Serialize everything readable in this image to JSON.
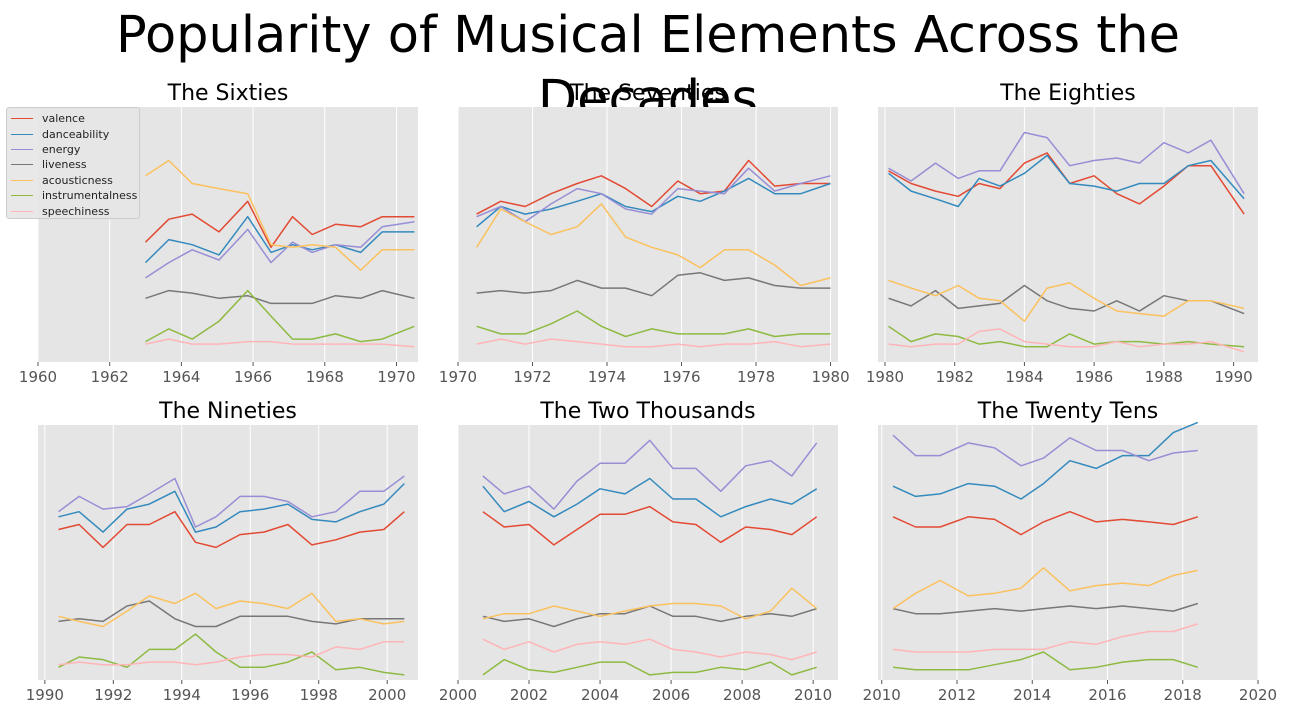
{
  "title": "Popularity of Musical Elements Across the Decades",
  "colors": {
    "valence": "#E24A33",
    "danceability": "#348ABD",
    "energy": "#988ED5",
    "liveness": "#777777",
    "acousticness": "#FBC15E",
    "instrumentalness": "#8EBA42",
    "speechiness": "#FFB5B8",
    "panel_background": "#E5E5E5",
    "grid": "#FFFFFF"
  },
  "legend": {
    "placement": "upper-left of first panel",
    "entries": [
      "valence",
      "danceability",
      "energy",
      "liveness",
      "acousticness",
      "instrumentalness",
      "speechiness"
    ]
  },
  "chart_data": [
    {
      "type": "line",
      "title": "The Sixties",
      "xlim": [
        1960,
        1970.6
      ],
      "ylim": [
        0,
        1
      ],
      "xticks": [
        1960,
        1962,
        1964,
        1966,
        1968,
        1970
      ],
      "grid": "vertical",
      "x": [
        1963,
        1963.65,
        1964.3,
        1965.05,
        1965.85,
        1966.5,
        1967.1,
        1967.65,
        1968.3,
        1969,
        1969.6,
        1970.5
      ],
      "series": [
        {
          "name": "valence",
          "values": [
            0.47,
            0.56,
            0.58,
            0.51,
            0.63,
            0.45,
            0.57,
            0.5,
            0.54,
            0.53,
            0.57,
            0.57
          ]
        },
        {
          "name": "danceability",
          "values": [
            0.39,
            0.48,
            0.46,
            0.42,
            0.57,
            0.43,
            0.46,
            0.44,
            0.46,
            0.43,
            0.51,
            0.51
          ]
        },
        {
          "name": "energy",
          "values": [
            0.33,
            0.39,
            0.44,
            0.4,
            0.52,
            0.39,
            0.47,
            0.43,
            0.46,
            0.45,
            0.53,
            0.55
          ]
        },
        {
          "name": "liveness",
          "values": [
            0.25,
            0.28,
            0.27,
            0.25,
            0.26,
            0.23,
            0.23,
            0.23,
            0.26,
            0.25,
            0.28,
            0.25
          ]
        },
        {
          "name": "acousticness",
          "values": [
            0.73,
            0.79,
            0.7,
            0.68,
            0.66,
            0.46,
            0.45,
            0.46,
            0.45,
            0.36,
            0.44,
            0.44
          ]
        },
        {
          "name": "instrumentalness",
          "values": [
            0.08,
            0.13,
            0.09,
            0.16,
            0.28,
            0.18,
            0.09,
            0.09,
            0.11,
            0.08,
            0.09,
            0.14
          ]
        },
        {
          "name": "speechiness",
          "values": [
            0.07,
            0.09,
            0.07,
            0.07,
            0.08,
            0.08,
            0.07,
            0.07,
            0.07,
            0.07,
            0.07,
            0.06
          ]
        }
      ]
    },
    {
      "type": "line",
      "title": "The Seventies",
      "xlim": [
        1970,
        1980.2
      ],
      "ylim": [
        0,
        1
      ],
      "xticks": [
        1970,
        1972,
        1974,
        1976,
        1978,
        1980
      ],
      "grid": "vertical",
      "x": [
        1970.5,
        1971.15,
        1971.8,
        1972.5,
        1973.2,
        1973.85,
        1974.5,
        1975.2,
        1975.9,
        1976.5,
        1977.15,
        1977.8,
        1978.5,
        1979.2,
        1980
      ],
      "series": [
        {
          "name": "valence",
          "values": [
            0.58,
            0.63,
            0.61,
            0.66,
            0.7,
            0.73,
            0.68,
            0.61,
            0.71,
            0.66,
            0.67,
            0.79,
            0.69,
            0.7,
            0.7
          ]
        },
        {
          "name": "danceability",
          "values": [
            0.53,
            0.61,
            0.58,
            0.6,
            0.63,
            0.66,
            0.61,
            0.59,
            0.65,
            0.63,
            0.67,
            0.72,
            0.66,
            0.66,
            0.7
          ]
        },
        {
          "name": "energy",
          "values": [
            0.57,
            0.61,
            0.55,
            0.62,
            0.68,
            0.66,
            0.6,
            0.58,
            0.68,
            0.67,
            0.66,
            0.76,
            0.67,
            0.7,
            0.73
          ]
        },
        {
          "name": "liveness",
          "values": [
            0.27,
            0.28,
            0.27,
            0.28,
            0.32,
            0.29,
            0.29,
            0.26,
            0.34,
            0.35,
            0.32,
            0.33,
            0.3,
            0.29,
            0.29
          ]
        },
        {
          "name": "acousticness",
          "values": [
            0.45,
            0.6,
            0.55,
            0.5,
            0.53,
            0.62,
            0.49,
            0.45,
            0.42,
            0.37,
            0.44,
            0.44,
            0.38,
            0.3,
            0.33
          ]
        },
        {
          "name": "instrumentalness",
          "values": [
            0.14,
            0.11,
            0.11,
            0.15,
            0.2,
            0.14,
            0.1,
            0.13,
            0.11,
            0.11,
            0.11,
            0.13,
            0.1,
            0.11,
            0.11
          ]
        },
        {
          "name": "speechiness",
          "values": [
            0.07,
            0.09,
            0.07,
            0.09,
            0.08,
            0.07,
            0.06,
            0.06,
            0.07,
            0.06,
            0.07,
            0.07,
            0.08,
            0.06,
            0.07
          ]
        }
      ]
    },
    {
      "type": "line",
      "title": "The Eighties",
      "xlim": [
        1979.8,
        1990.7
      ],
      "ylim": [
        0,
        1
      ],
      "xticks": [
        1980,
        1982,
        1984,
        1986,
        1988,
        1990
      ],
      "grid": "vertical",
      "x": [
        1980.1,
        1980.75,
        1981.45,
        1982.1,
        1982.7,
        1983.3,
        1984,
        1984.65,
        1985.3,
        1986,
        1986.65,
        1987.3,
        1988,
        1988.7,
        1989.35,
        1990.3
      ],
      "series": [
        {
          "name": "valence",
          "values": [
            0.75,
            0.7,
            0.67,
            0.65,
            0.7,
            0.68,
            0.78,
            0.82,
            0.7,
            0.73,
            0.66,
            0.62,
            0.69,
            0.77,
            0.77,
            0.58
          ]
        },
        {
          "name": "danceability",
          "values": [
            0.74,
            0.67,
            0.64,
            0.61,
            0.72,
            0.69,
            0.74,
            0.81,
            0.7,
            0.69,
            0.67,
            0.7,
            0.7,
            0.77,
            0.79,
            0.64
          ]
        },
        {
          "name": "energy",
          "values": [
            0.76,
            0.71,
            0.78,
            0.72,
            0.75,
            0.75,
            0.9,
            0.88,
            0.77,
            0.79,
            0.8,
            0.78,
            0.86,
            0.82,
            0.87,
            0.66
          ]
        },
        {
          "name": "liveness",
          "values": [
            0.25,
            0.22,
            0.28,
            0.21,
            0.22,
            0.23,
            0.3,
            0.24,
            0.21,
            0.2,
            0.24,
            0.2,
            0.26,
            0.24,
            0.24,
            0.19
          ]
        },
        {
          "name": "acousticness",
          "values": [
            0.32,
            0.29,
            0.26,
            0.3,
            0.25,
            0.24,
            0.16,
            0.29,
            0.31,
            0.25,
            0.2,
            0.19,
            0.18,
            0.24,
            0.24,
            0.21
          ]
        },
        {
          "name": "instrumentalness",
          "values": [
            0.14,
            0.08,
            0.11,
            0.1,
            0.07,
            0.08,
            0.06,
            0.06,
            0.11,
            0.07,
            0.08,
            0.08,
            0.07,
            0.08,
            0.07,
            0.06
          ]
        },
        {
          "name": "speechiness",
          "values": [
            0.07,
            0.06,
            0.07,
            0.07,
            0.12,
            0.13,
            0.08,
            0.07,
            0.06,
            0.06,
            0.08,
            0.06,
            0.07,
            0.07,
            0.08,
            0.04
          ]
        }
      ]
    },
    {
      "type": "line",
      "title": "The Nineties",
      "xlim": [
        1989.8,
        2000.9
      ],
      "ylim": [
        0,
        1
      ],
      "xticks": [
        1990,
        1992,
        1994,
        1996,
        1998,
        2000
      ],
      "grid": "vertical",
      "x": [
        1990.4,
        1991,
        1991.7,
        1992.4,
        1993.05,
        1993.8,
        1994.4,
        1995,
        1995.7,
        1996.4,
        1997.1,
        1997.8,
        1998.5,
        1999.2,
        1999.9,
        2000.5
      ],
      "series": [
        {
          "name": "valence",
          "values": [
            0.59,
            0.61,
            0.52,
            0.61,
            0.61,
            0.66,
            0.54,
            0.52,
            0.57,
            0.58,
            0.61,
            0.53,
            0.55,
            0.58,
            0.59,
            0.66
          ]
        },
        {
          "name": "danceability",
          "values": [
            0.64,
            0.66,
            0.58,
            0.67,
            0.69,
            0.74,
            0.58,
            0.6,
            0.66,
            0.67,
            0.69,
            0.63,
            0.62,
            0.66,
            0.69,
            0.77
          ]
        },
        {
          "name": "energy",
          "values": [
            0.66,
            0.72,
            0.67,
            0.68,
            0.73,
            0.79,
            0.6,
            0.64,
            0.72,
            0.72,
            0.7,
            0.64,
            0.66,
            0.74,
            0.74,
            0.8
          ]
        },
        {
          "name": "liveness",
          "values": [
            0.23,
            0.24,
            0.23,
            0.29,
            0.31,
            0.24,
            0.21,
            0.21,
            0.25,
            0.25,
            0.25,
            0.23,
            0.22,
            0.24,
            0.24,
            0.24
          ]
        },
        {
          "name": "acousticness",
          "values": [
            0.25,
            0.23,
            0.21,
            0.27,
            0.33,
            0.3,
            0.34,
            0.28,
            0.31,
            0.3,
            0.28,
            0.34,
            0.23,
            0.24,
            0.22,
            0.23
          ]
        },
        {
          "name": "instrumentalness",
          "values": [
            0.05,
            0.09,
            0.08,
            0.05,
            0.12,
            0.12,
            0.18,
            0.11,
            0.05,
            0.05,
            0.07,
            0.11,
            0.04,
            0.05,
            0.03,
            0.02
          ]
        },
        {
          "name": "speechiness",
          "values": [
            0.06,
            0.07,
            0.06,
            0.06,
            0.07,
            0.07,
            0.06,
            0.07,
            0.09,
            0.1,
            0.1,
            0.09,
            0.13,
            0.12,
            0.15,
            0.15
          ]
        }
      ]
    },
    {
      "type": "line",
      "title": "The Two Thousands",
      "xlim": [
        2000,
        2010.7
      ],
      "ylim": [
        0,
        1
      ],
      "xticks": [
        2000,
        2002,
        2004,
        2006,
        2008,
        2010
      ],
      "grid": "vertical",
      "x": [
        2000.7,
        2001.3,
        2002,
        2002.7,
        2003.35,
        2004,
        2004.7,
        2005.4,
        2006.05,
        2006.7,
        2007.4,
        2008.1,
        2008.8,
        2009.4,
        2010.1
      ],
      "series": [
        {
          "name": "valence",
          "values": [
            0.66,
            0.6,
            0.61,
            0.53,
            0.59,
            0.65,
            0.65,
            0.68,
            0.62,
            0.61,
            0.54,
            0.6,
            0.59,
            0.57,
            0.64
          ]
        },
        {
          "name": "danceability",
          "values": [
            0.76,
            0.66,
            0.7,
            0.64,
            0.69,
            0.75,
            0.73,
            0.79,
            0.71,
            0.71,
            0.64,
            0.68,
            0.71,
            0.69,
            0.75
          ]
        },
        {
          "name": "energy",
          "values": [
            0.8,
            0.73,
            0.76,
            0.67,
            0.78,
            0.85,
            0.85,
            0.94,
            0.83,
            0.83,
            0.74,
            0.84,
            0.86,
            0.8,
            0.93
          ]
        },
        {
          "name": "liveness",
          "values": [
            0.25,
            0.23,
            0.24,
            0.21,
            0.24,
            0.26,
            0.26,
            0.29,
            0.25,
            0.25,
            0.23,
            0.25,
            0.26,
            0.25,
            0.28
          ]
        },
        {
          "name": "acousticness",
          "values": [
            0.24,
            0.26,
            0.26,
            0.29,
            0.27,
            0.25,
            0.27,
            0.29,
            0.3,
            0.3,
            0.29,
            0.24,
            0.27,
            0.36,
            0.28
          ]
        },
        {
          "name": "instrumentalness",
          "values": [
            0.02,
            0.08,
            0.04,
            0.03,
            0.05,
            0.07,
            0.07,
            0.02,
            0.03,
            0.03,
            0.05,
            0.04,
            0.07,
            0.02,
            0.05
          ]
        },
        {
          "name": "speechiness",
          "values": [
            0.16,
            0.12,
            0.15,
            0.11,
            0.14,
            0.15,
            0.14,
            0.16,
            0.12,
            0.11,
            0.09,
            0.11,
            0.1,
            0.08,
            0.11
          ]
        }
      ]
    },
    {
      "type": "line",
      "title": "The Twenty Tens",
      "xlim": [
        2009.9,
        2020
      ],
      "ylim": [
        0,
        1
      ],
      "xticks": [
        2010,
        2012,
        2014,
        2016,
        2018,
        2020
      ],
      "grid": "vertical",
      "x": [
        2010.3,
        2010.9,
        2011.55,
        2012.3,
        2013,
        2013.7,
        2014.3,
        2015,
        2015.7,
        2016.4,
        2017.1,
        2017.75,
        2018.4
      ],
      "series": [
        {
          "name": "valence",
          "values": [
            0.64,
            0.6,
            0.6,
            0.64,
            0.63,
            0.57,
            0.62,
            0.66,
            0.62,
            0.63,
            0.62,
            0.61,
            0.64
          ]
        },
        {
          "name": "danceability",
          "values": [
            0.76,
            0.72,
            0.73,
            0.77,
            0.76,
            0.71,
            0.77,
            0.86,
            0.83,
            0.88,
            0.88,
            0.97,
            1.01
          ]
        },
        {
          "name": "energy",
          "values": [
            0.96,
            0.88,
            0.88,
            0.93,
            0.91,
            0.84,
            0.87,
            0.95,
            0.9,
            0.9,
            0.86,
            0.89,
            0.9
          ]
        },
        {
          "name": "liveness",
          "values": [
            0.28,
            0.26,
            0.26,
            0.27,
            0.28,
            0.27,
            0.28,
            0.29,
            0.28,
            0.29,
            0.28,
            0.27,
            0.3
          ]
        },
        {
          "name": "acousticness",
          "values": [
            0.28,
            0.34,
            0.39,
            0.33,
            0.34,
            0.36,
            0.44,
            0.35,
            0.37,
            0.38,
            0.37,
            0.41,
            0.43
          ]
        },
        {
          "name": "instrumentalness",
          "values": [
            0.05,
            0.04,
            0.04,
            0.04,
            0.06,
            0.08,
            0.11,
            0.04,
            0.05,
            0.07,
            0.08,
            0.08,
            0.05
          ]
        },
        {
          "name": "speechiness",
          "values": [
            0.12,
            0.11,
            0.11,
            0.11,
            0.12,
            0.12,
            0.12,
            0.15,
            0.14,
            0.17,
            0.19,
            0.19,
            0.22
          ]
        }
      ]
    }
  ]
}
